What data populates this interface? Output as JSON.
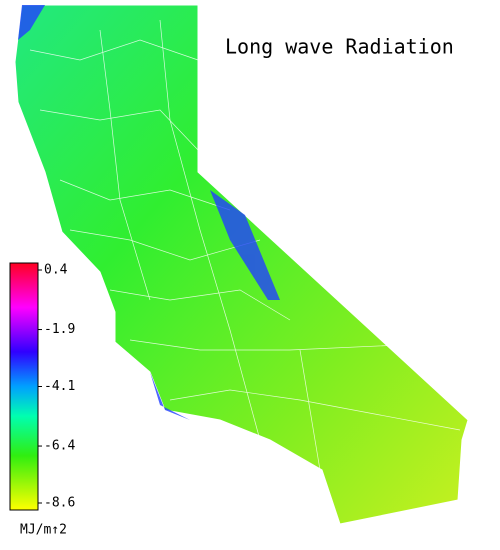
{
  "title": "Long wave Radiation",
  "colorbar": {
    "lim": [
      -8.6,
      0.4
    ],
    "ticks": [
      0.4,
      -1.9,
      -4.1,
      -6.4,
      -8.6
    ],
    "unit": "MJ/m↑2"
  }
}
